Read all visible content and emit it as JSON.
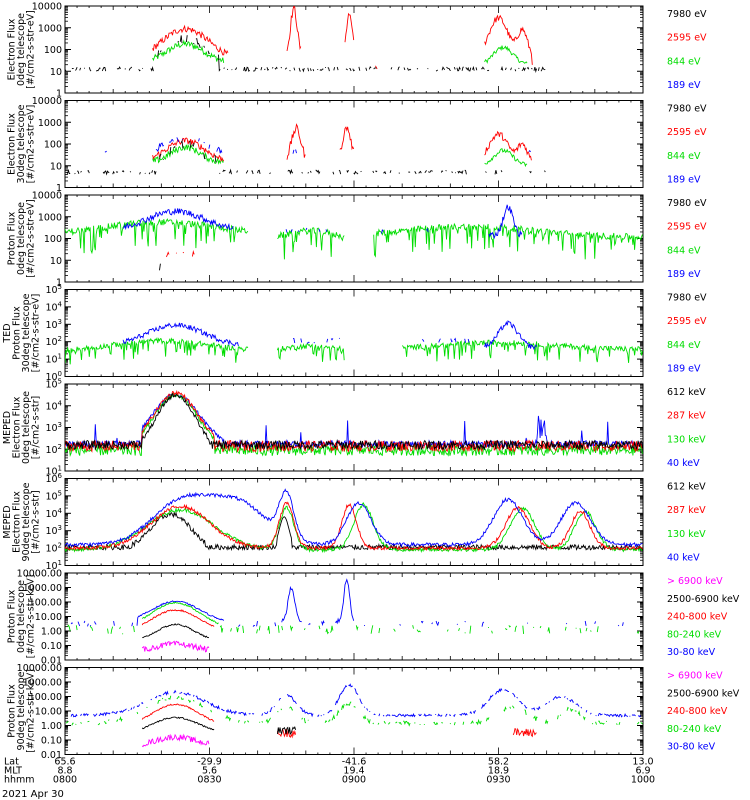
{
  "figure": {
    "date_label": "2021 Apr 30",
    "footer_row_labels": [
      "Lat",
      "MLT",
      "hhmm"
    ]
  },
  "colors": {
    "black": "#000000",
    "red": "#ff0000",
    "green": "#00dd00",
    "blue": "#0000ff",
    "magenta": "#ff00ff"
  },
  "chart_data": [
    {
      "type": "line",
      "panel": "ted-electron-0deg",
      "ylabel_lines": [
        "Electron Flux",
        "0deg telescope",
        "[#/cm2-s-str-eV]"
      ],
      "scale": "log",
      "ylim": [
        1,
        10000
      ],
      "tick_labels": [
        "1",
        "10",
        "100",
        "1000",
        "10000"
      ],
      "series": [
        {
          "name": "7980 eV",
          "color": "black"
        },
        {
          "name": "2595 eV",
          "color": "red"
        },
        {
          "name": "844 eV",
          "color": "green"
        },
        {
          "name": "189 eV",
          "color": "blue"
        }
      ]
    },
    {
      "type": "line",
      "panel": "ted-electron-30deg",
      "ylabel_lines": [
        "Electron Flux",
        "30deg telescope",
        "[#/cm2-s-str-eV]"
      ],
      "scale": "log",
      "ylim": [
        1,
        10000
      ],
      "tick_labels": [
        "1",
        "10",
        "100",
        "1000",
        "10000"
      ],
      "series": [
        {
          "name": "7980 eV",
          "color": "black"
        },
        {
          "name": "2595 eV",
          "color": "red"
        },
        {
          "name": "844 eV",
          "color": "green"
        },
        {
          "name": "189 eV",
          "color": "blue"
        }
      ]
    },
    {
      "type": "line",
      "panel": "ted-proton-0deg",
      "ylabel_lines": [
        "Proton Flux",
        "0deg telescope",
        "[#/cm2-s-str-eV]"
      ],
      "scale": "log",
      "ylim": [
        1,
        10000
      ],
      "tick_labels": [
        "1",
        "10",
        "100",
        "1000",
        "10000"
      ],
      "series": [
        {
          "name": "7980 eV",
          "color": "black"
        },
        {
          "name": "2595 eV",
          "color": "red"
        },
        {
          "name": "844 eV",
          "color": "green"
        },
        {
          "name": "189 eV",
          "color": "blue"
        }
      ]
    },
    {
      "type": "line",
      "panel": "ted-proton-30deg",
      "ylabel_lines": [
        "TED",
        "Proton Flux",
        "30deg telescope",
        "[#/cm2-s-str-eV]"
      ],
      "scale": "log",
      "ylim": [
        1,
        100000
      ],
      "tick_labels": [
        "10^0",
        "10^1",
        "10^2",
        "10^3",
        "10^4",
        "10^5"
      ],
      "series": [
        {
          "name": "7980 eV",
          "color": "black"
        },
        {
          "name": "2595 eV",
          "color": "red"
        },
        {
          "name": "844 eV",
          "color": "green"
        },
        {
          "name": "189 eV",
          "color": "blue"
        }
      ]
    },
    {
      "type": "line",
      "panel": "meped-electron-0deg",
      "ylabel_lines": [
        "MEPED",
        "Electron Flux",
        "0deg telescope",
        "[#/cm2-s-str]"
      ],
      "scale": "log",
      "ylim": [
        10,
        100000
      ],
      "tick_labels": [
        "10^1",
        "10^2",
        "10^3",
        "10^4",
        "10^5"
      ],
      "series": [
        {
          "name": "612 keV",
          "color": "black"
        },
        {
          "name": "287 keV",
          "color": "red"
        },
        {
          "name": "130 keV",
          "color": "green"
        },
        {
          "name": "40 keV",
          "color": "blue"
        }
      ]
    },
    {
      "type": "line",
      "panel": "meped-electron-90deg",
      "ylabel_lines": [
        "MEPED",
        "Electron Flux",
        "90deg telescope",
        "[#/cm2-s-str]"
      ],
      "scale": "log",
      "ylim": [
        10,
        1000000
      ],
      "tick_labels": [
        "10^1",
        "10^2",
        "10^3",
        "10^4",
        "10^5",
        "10^6"
      ],
      "series": [
        {
          "name": "612 keV",
          "color": "black"
        },
        {
          "name": "287 keV",
          "color": "red"
        },
        {
          "name": "130 keV",
          "color": "green"
        },
        {
          "name": "40 keV",
          "color": "blue"
        }
      ]
    },
    {
      "type": "line",
      "panel": "meped-proton-0deg",
      "ylabel_lines": [
        "Proton Flux",
        "0deg telescope",
        "[#/cm2-s-str-keV]"
      ],
      "scale": "log",
      "ylim": [
        0.01,
        10000
      ],
      "tick_labels": [
        "0.01",
        "0.10",
        "1.00",
        "10.00",
        "100.00",
        "1000.00",
        "10000.00"
      ],
      "series": [
        {
          "name": "> 6900 keV",
          "color": "magenta"
        },
        {
          "name": "2500-6900 keV",
          "color": "black"
        },
        {
          "name": "240-800 keV",
          "color": "red"
        },
        {
          "name": "80-240 keV",
          "color": "green"
        },
        {
          "name": "30-80 keV",
          "color": "blue"
        }
      ]
    },
    {
      "type": "line",
      "panel": "meped-proton-90deg",
      "ylabel_lines": [
        "Proton Flux",
        "90deg telescope",
        "[#/cm2-s-str-keV]"
      ],
      "scale": "log",
      "ylim": [
        0.01,
        10000
      ],
      "tick_labels": [
        "0.01",
        "0.10",
        "1.00",
        "10.00",
        "100.00",
        "1000.00",
        "10000.00"
      ],
      "series": [
        {
          "name": "> 6900 keV",
          "color": "magenta"
        },
        {
          "name": "2500-6900 keV",
          "color": "black"
        },
        {
          "name": "240-800 keV",
          "color": "red"
        },
        {
          "name": "80-240 keV",
          "color": "green"
        },
        {
          "name": "30-80 keV",
          "color": "blue"
        }
      ]
    }
  ],
  "x_axis": {
    "range_minutes": [
      0,
      120
    ],
    "ticks": [
      {
        "t": 0,
        "lat": "65.6",
        "mlt": "8.8",
        "hhmm": "0800"
      },
      {
        "t": 30,
        "lat": "-29.9",
        "mlt": "5.6",
        "hhmm": "0830"
      },
      {
        "t": 60,
        "lat": "-41.6",
        "mlt": "19.4",
        "hhmm": "0900"
      },
      {
        "t": 90,
        "lat": "58.2",
        "mlt": "18.9",
        "hhmm": "0930"
      },
      {
        "t": 120,
        "lat": "13.0",
        "mlt": "6.9",
        "hhmm": "1000"
      }
    ]
  }
}
